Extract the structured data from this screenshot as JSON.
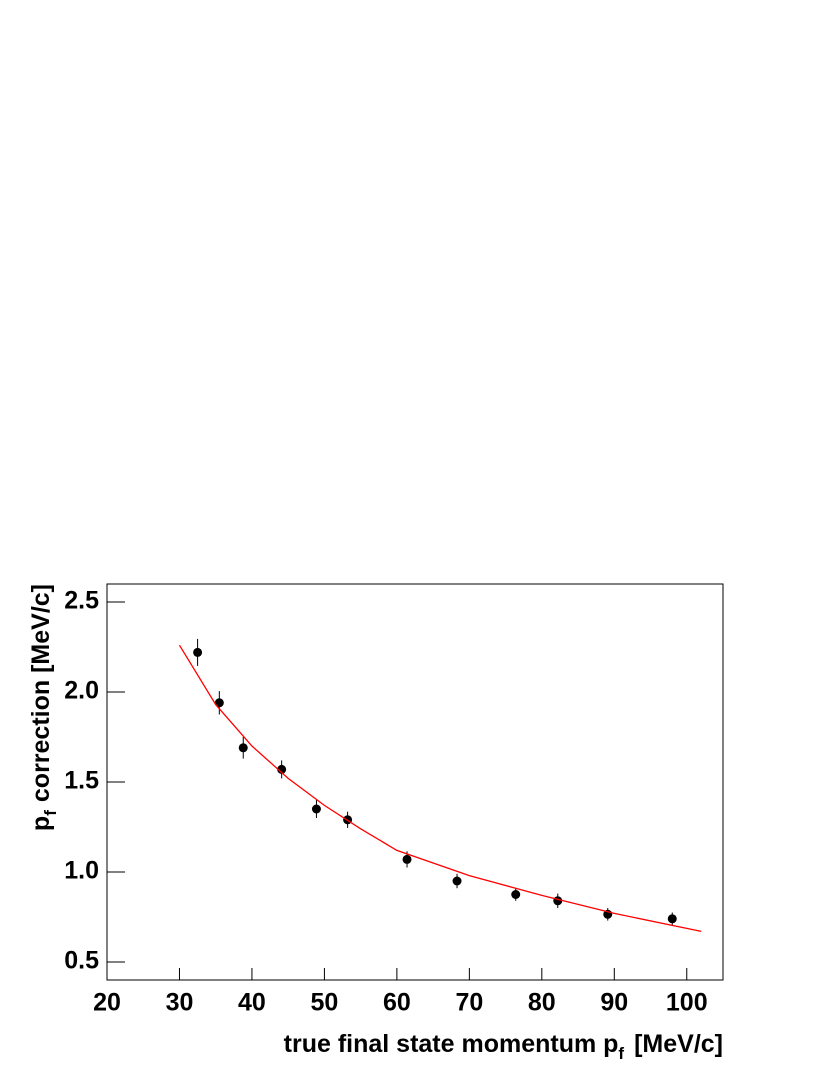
{
  "chart_data": {
    "type": "scatter",
    "x_label": {
      "text": "true final state momentum p",
      "subscript": "f",
      "unit": "[MeV/c]"
    },
    "y_label": {
      "text": "p",
      "subscript": "f",
      "unit": "correction [MeV/c]"
    },
    "xlim": [
      20,
      105
    ],
    "ylim": [
      0.4,
      2.6
    ],
    "xticks": [
      20,
      30,
      40,
      50,
      60,
      70,
      80,
      90,
      100
    ],
    "yticks": [
      0.5,
      {
        "value": 1,
        "label": "1.0"
      },
      1.5,
      {
        "value": 2,
        "label": "2.0"
      },
      2.5
    ],
    "series": [
      {
        "type": "scatter",
        "color": "#000000",
        "x": [
          32.5,
          35.5,
          38.8,
          44.1,
          48.9,
          53.2,
          61.4,
          68.3,
          76.4,
          82.2,
          89.1,
          98.0
        ],
        "values": [
          2.22,
          1.94,
          1.69,
          1.57,
          1.35,
          1.29,
          1.07,
          0.95,
          0.875,
          0.84,
          0.765,
          0.74
        ],
        "errors": [
          0.075,
          0.065,
          0.06,
          0.05,
          0.05,
          0.045,
          0.045,
          0.04,
          0.035,
          0.04,
          0.035,
          0.035
        ]
      },
      {
        "type": "line",
        "color": "#ff0000",
        "x": [
          30,
          35,
          40,
          45,
          50,
          55,
          60,
          70,
          80,
          90,
          102
        ],
        "values": [
          2.26,
          1.93,
          1.7,
          1.52,
          1.37,
          1.24,
          1.12,
          0.98,
          0.87,
          0.77,
          0.67
        ]
      }
    ]
  }
}
